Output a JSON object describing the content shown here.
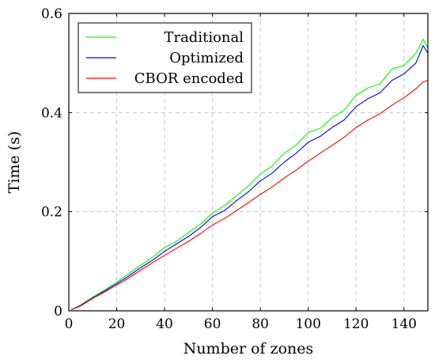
{
  "chart_data": {
    "type": "line",
    "xlabel": "Number of zones",
    "ylabel": "Time (s)",
    "xlim": [
      0,
      150
    ],
    "ylim": [
      0,
      0.6
    ],
    "xticks": [
      0,
      20,
      40,
      60,
      80,
      100,
      120,
      140
    ],
    "yticks": [
      0,
      0.2,
      0.4,
      0.6
    ],
    "xtick_labels": [
      "0",
      "20",
      "40",
      "60",
      "80",
      "100",
      "120",
      "140"
    ],
    "ytick_labels": [
      "0",
      "0.2",
      "0.4",
      "0.6"
    ],
    "grid": true,
    "legend_position": "top-left",
    "series": [
      {
        "name": "Traditional",
        "color": "#00ff00",
        "x": [
          1,
          5,
          10,
          15,
          20,
          25,
          30,
          35,
          40,
          45,
          50,
          55,
          60,
          65,
          70,
          75,
          80,
          85,
          90,
          95,
          100,
          105,
          110,
          115,
          120,
          125,
          130,
          135,
          140,
          145,
          148,
          150
        ],
        "y": [
          0.002,
          0.012,
          0.028,
          0.042,
          0.058,
          0.075,
          0.092,
          0.108,
          0.128,
          0.14,
          0.158,
          0.175,
          0.197,
          0.212,
          0.232,
          0.252,
          0.276,
          0.292,
          0.318,
          0.335,
          0.36,
          0.368,
          0.39,
          0.405,
          0.435,
          0.45,
          0.458,
          0.488,
          0.495,
          0.52,
          0.548,
          0.53
        ]
      },
      {
        "name": "Optimized",
        "color": "#0000ff",
        "x": [
          1,
          5,
          10,
          15,
          20,
          25,
          30,
          35,
          40,
          45,
          50,
          55,
          60,
          65,
          70,
          75,
          80,
          85,
          90,
          95,
          100,
          105,
          110,
          115,
          120,
          125,
          130,
          135,
          140,
          145,
          148,
          150
        ],
        "y": [
          0.002,
          0.011,
          0.026,
          0.04,
          0.055,
          0.07,
          0.087,
          0.102,
          0.12,
          0.135,
          0.15,
          0.168,
          0.19,
          0.202,
          0.222,
          0.24,
          0.262,
          0.278,
          0.3,
          0.318,
          0.34,
          0.352,
          0.37,
          0.385,
          0.412,
          0.428,
          0.44,
          0.465,
          0.478,
          0.5,
          0.535,
          0.52
        ]
      },
      {
        "name": "CBOR encoded",
        "color": "#ff0000",
        "x": [
          1,
          5,
          10,
          15,
          20,
          25,
          30,
          35,
          40,
          45,
          50,
          55,
          60,
          65,
          70,
          75,
          80,
          85,
          90,
          95,
          100,
          105,
          110,
          115,
          120,
          125,
          130,
          135,
          140,
          145,
          148,
          150
        ],
        "y": [
          0.002,
          0.01,
          0.025,
          0.038,
          0.052,
          0.066,
          0.082,
          0.097,
          0.112,
          0.126,
          0.14,
          0.156,
          0.173,
          0.186,
          0.202,
          0.218,
          0.235,
          0.25,
          0.268,
          0.284,
          0.302,
          0.318,
          0.334,
          0.35,
          0.37,
          0.385,
          0.398,
          0.415,
          0.43,
          0.448,
          0.462,
          0.465
        ]
      }
    ]
  }
}
